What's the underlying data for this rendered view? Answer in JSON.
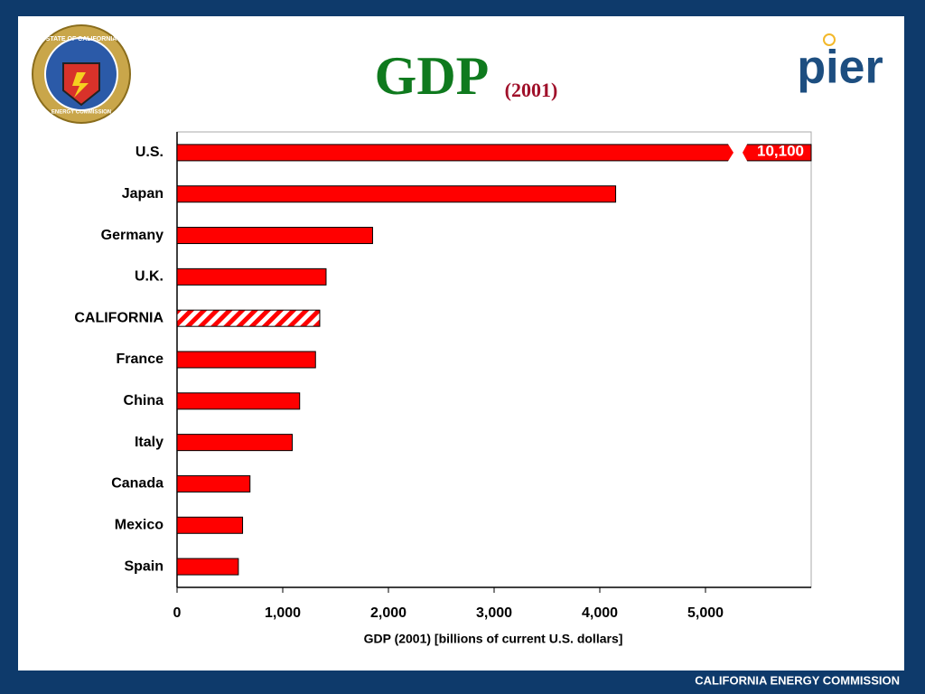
{
  "chart_data": {
    "type": "bar",
    "title": "GDP",
    "subtitle": "(2001)",
    "categories": [
      "U.S.",
      "Japan",
      "Germany",
      "U.K.",
      "CALIFORNIA",
      "France",
      "China",
      "Italy",
      "Canada",
      "Mexico",
      "Spain"
    ],
    "values": [
      10100,
      4150,
      1850,
      1410,
      1350,
      1310,
      1160,
      1090,
      690,
      620,
      580
    ],
    "value_labels": [
      "10,100",
      null,
      null,
      null,
      null,
      null,
      null,
      null,
      null,
      null,
      null
    ],
    "color": "#ff0000",
    "hatched": 4,
    "orientation": "horizontal",
    "xlabel": "GDP (2001) [billions of current U.S. dollars]",
    "xlim": [
      0,
      6000
    ],
    "xticks": [
      0,
      {
        "value": 1000,
        "label": "1,000"
      },
      {
        "value": 2000,
        "label": "2,000"
      },
      {
        "value": 3000,
        "label": "3,000"
      },
      {
        "value": 4000,
        "label": "4,000"
      },
      {
        "value": 5000,
        "label": "5,000"
      }
    ]
  },
  "header": {
    "logo_right": "pier",
    "seal_top": "STATE OF CALIFORNIA",
    "seal_bottom": "ENERGY COMMISSION"
  },
  "footer": {
    "text": "CALIFORNIA ENERGY COMMISSION"
  }
}
